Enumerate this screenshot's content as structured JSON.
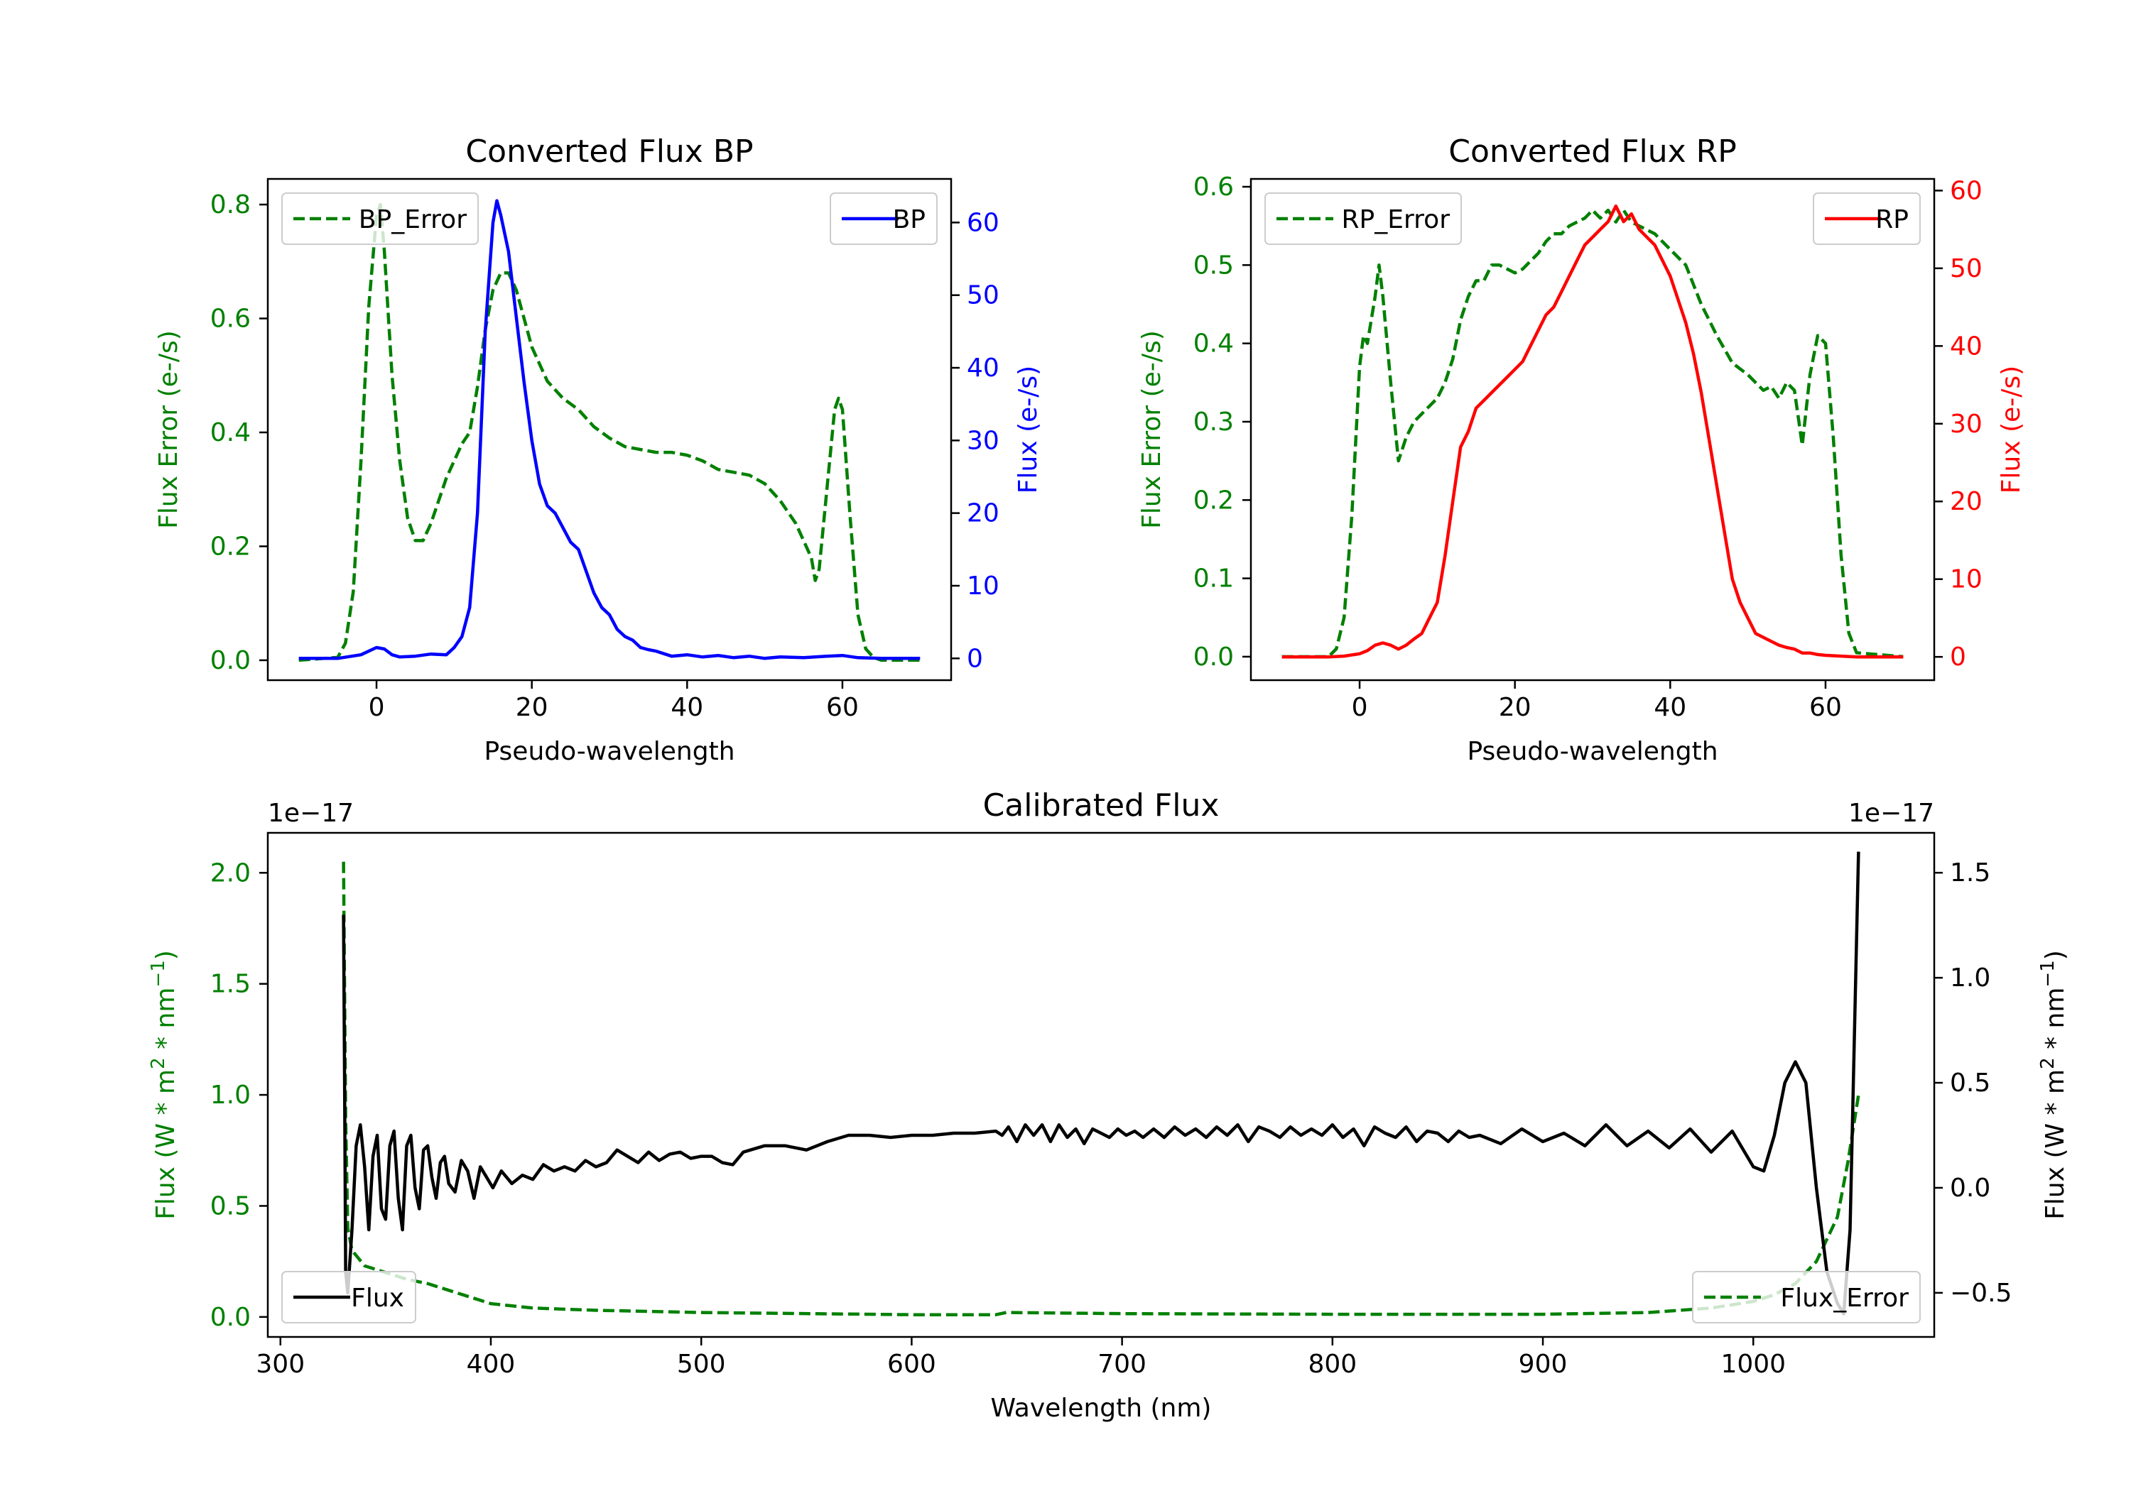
{
  "chart_data": [
    {
      "type": "line",
      "id": "bp",
      "title": "Converted Flux BP",
      "xlabel": "Pseudo-wavelength",
      "ylabel_left": "Flux Error (e-/s)",
      "ylabel_right": "Flux (e-/s)",
      "xlim": [
        -14,
        74
      ],
      "ylim_left": [
        -0.035,
        0.845
      ],
      "ylim_right": [
        -3,
        66
      ],
      "xticks": [
        0,
        20,
        40,
        60
      ],
      "yticks_left": [
        "0.0",
        "0.2",
        "0.4",
        "0.6",
        "0.8"
      ],
      "yticks_right": [
        "0",
        "10",
        "20",
        "30",
        "40",
        "50",
        "60"
      ],
      "left_color": "#008000",
      "right_color": "#0000ff",
      "series": [
        {
          "name": "BP_Error",
          "axis": "left",
          "style": "dashed",
          "color": "#008000",
          "x": [
            -10,
            -5,
            -4,
            -3,
            -2,
            -1,
            0,
            0.5,
            1,
            2,
            3,
            4,
            5,
            6,
            7,
            8,
            9,
            10,
            11,
            12,
            13,
            14,
            15,
            16,
            17,
            18,
            19,
            20,
            22,
            24,
            26,
            28,
            30,
            32,
            34,
            36,
            38,
            40,
            42,
            44,
            46,
            48,
            50,
            52,
            54,
            56,
            56.5,
            57,
            58,
            59,
            59.5,
            60,
            61,
            62,
            63,
            64,
            65,
            70
          ],
          "y": [
            0,
            0.005,
            0.03,
            0.12,
            0.35,
            0.62,
            0.78,
            0.8,
            0.72,
            0.5,
            0.35,
            0.25,
            0.21,
            0.21,
            0.24,
            0.28,
            0.32,
            0.35,
            0.38,
            0.4,
            0.48,
            0.58,
            0.65,
            0.68,
            0.68,
            0.65,
            0.6,
            0.55,
            0.49,
            0.46,
            0.44,
            0.41,
            0.39,
            0.375,
            0.37,
            0.365,
            0.365,
            0.36,
            0.35,
            0.335,
            0.33,
            0.325,
            0.31,
            0.28,
            0.24,
            0.18,
            0.14,
            0.16,
            0.3,
            0.44,
            0.46,
            0.44,
            0.25,
            0.08,
            0.02,
            0.005,
            0,
            0
          ]
        },
        {
          "name": "BP",
          "axis": "right",
          "style": "solid",
          "color": "#0000ff",
          "x": [
            -10,
            -5,
            -2,
            0,
            1,
            2,
            3,
            5,
            7,
            9,
            10,
            11,
            12,
            13,
            14,
            15,
            15.5,
            16,
            17,
            18,
            19,
            20,
            21,
            22,
            23,
            24,
            25,
            26,
            27,
            28,
            29,
            30,
            31,
            32,
            33,
            34,
            35,
            36,
            38,
            40,
            42,
            44,
            46,
            48,
            50,
            52,
            55,
            58,
            60,
            62,
            65,
            70
          ],
          "y": [
            0,
            0,
            0.5,
            1.5,
            1.3,
            0.5,
            0.2,
            0.3,
            0.6,
            0.5,
            1.5,
            3,
            7,
            20,
            45,
            60,
            63,
            61,
            56,
            47,
            38,
            30,
            24,
            21,
            20,
            18,
            16,
            15,
            12,
            9,
            7,
            6,
            4,
            3,
            2.5,
            1.5,
            1.2,
            1.0,
            0.3,
            0.5,
            0.2,
            0.4,
            0.1,
            0.3,
            0.0,
            0.2,
            0.1,
            0.3,
            0.4,
            0.1,
            0.0,
            0.0
          ]
        }
      ]
    },
    {
      "type": "line",
      "id": "rp",
      "title": "Converted Flux RP",
      "xlabel": "Pseudo-wavelength",
      "ylabel_left": "Flux Error (e-/s)",
      "ylabel_right": "Flux (e-/s)",
      "xlim": [
        -14,
        74
      ],
      "ylim_left": [
        -0.03,
        0.61
      ],
      "ylim_right": [
        -3,
        61.5
      ],
      "xticks": [
        0,
        20,
        40,
        60
      ],
      "yticks_left": [
        "0.0",
        "0.1",
        "0.2",
        "0.3",
        "0.4",
        "0.5",
        "0.6"
      ],
      "yticks_right": [
        "0",
        "10",
        "20",
        "30",
        "40",
        "50",
        "60"
      ],
      "left_color": "#008000",
      "right_color": "#ff0000",
      "series": [
        {
          "name": "RP_Error",
          "axis": "left",
          "style": "dashed",
          "color": "#008000",
          "x": [
            -10,
            -4,
            -3,
            -2,
            -1,
            0,
            0.5,
            1,
            2,
            2.5,
            3,
            4,
            5,
            6,
            7,
            8,
            9,
            10,
            11,
            12,
            13,
            14,
            15,
            16,
            17,
            18,
            19,
            20,
            21,
            22,
            23,
            24,
            25,
            26,
            27,
            28,
            29,
            30,
            31,
            32,
            33,
            34,
            35,
            36,
            37,
            38,
            40,
            42,
            44,
            46,
            48,
            50,
            52,
            53,
            54,
            55,
            56,
            57,
            58,
            59,
            60,
            61,
            62,
            63,
            64,
            70
          ],
          "y": [
            0,
            0,
            0.01,
            0.05,
            0.18,
            0.37,
            0.41,
            0.4,
            0.46,
            0.5,
            0.46,
            0.35,
            0.25,
            0.28,
            0.3,
            0.31,
            0.32,
            0.33,
            0.35,
            0.38,
            0.43,
            0.46,
            0.48,
            0.48,
            0.5,
            0.5,
            0.495,
            0.49,
            0.495,
            0.505,
            0.515,
            0.53,
            0.54,
            0.54,
            0.55,
            0.555,
            0.56,
            0.57,
            0.56,
            0.57,
            0.555,
            0.57,
            0.555,
            0.55,
            0.545,
            0.54,
            0.52,
            0.5,
            0.45,
            0.41,
            0.375,
            0.36,
            0.34,
            0.345,
            0.33,
            0.35,
            0.34,
            0.27,
            0.36,
            0.41,
            0.4,
            0.28,
            0.13,
            0.03,
            0.005,
            0
          ]
        },
        {
          "name": "RP",
          "axis": "right",
          "style": "solid",
          "color": "#ff0000",
          "x": [
            -10,
            -4,
            -2,
            0,
            1,
            2,
            3,
            4,
            5,
            6,
            7,
            8,
            9,
            10,
            11,
            12,
            13,
            14,
            15,
            16,
            17,
            18,
            19,
            20,
            21,
            22,
            23,
            24,
            25,
            26,
            27,
            28,
            29,
            30,
            31,
            32,
            33,
            34,
            35,
            36,
            37,
            38,
            39,
            40,
            41,
            42,
            43,
            44,
            45,
            46,
            47,
            48,
            49,
            50,
            51,
            52,
            53,
            54,
            55,
            56,
            57,
            58,
            59,
            60,
            62,
            64,
            70
          ],
          "y": [
            0,
            0,
            0.1,
            0.4,
            0.8,
            1.5,
            1.8,
            1.5,
            1.0,
            1.5,
            2.3,
            3,
            5,
            7,
            13,
            20,
            27,
            29,
            32,
            33,
            34,
            35,
            36,
            37,
            38,
            40,
            42,
            44,
            45,
            47,
            49,
            51,
            53,
            54,
            55,
            56,
            58,
            56,
            57,
            55,
            54,
            53,
            51,
            49,
            46,
            43,
            39,
            34,
            28,
            22,
            16,
            10,
            7,
            5,
            3,
            2.5,
            2,
            1.5,
            1.2,
            1.0,
            0.5,
            0.5,
            0.3,
            0.2,
            0.1,
            0,
            0
          ]
        }
      ]
    },
    {
      "type": "line",
      "id": "cal",
      "title": "Calibrated Flux",
      "xlabel": "Wavelength (nm)",
      "ylabel_left": "Flux (W * m",
      "ylabel_right": "Flux (W * m",
      "ylabel_tail_1": " * nm",
      "ylabel_tail_2": ")",
      "ylabel_sup_2": "2",
      "ylabel_sup_neg1": "−1",
      "offset_left": "1e−17",
      "offset_right": "1e−17",
      "xlim": [
        294,
        1086
      ],
      "ylim_left": [
        -0.09,
        2.18
      ],
      "ylim_right": [
        -0.71,
        1.69
      ],
      "xticks": [
        300,
        400,
        500,
        600,
        700,
        800,
        900,
        1000
      ],
      "yticks_left": [
        "0.0",
        "0.5",
        "1.0",
        "1.5",
        "2.0"
      ],
      "yticks_right": [
        "−0.5",
        "0.0",
        "0.5",
        "1.0",
        "1.5"
      ],
      "left_color": "#008000",
      "right_color": "#000000",
      "series": [
        {
          "name": "Flux_Error",
          "axis": "left",
          "style": "dashed",
          "color": "#008000",
          "x": [
            330,
            331,
            332,
            334,
            340,
            350,
            360,
            370,
            380,
            390,
            400,
            420,
            450,
            500,
            600,
            640,
            645,
            700,
            800,
            900,
            950,
            980,
            1000,
            1010,
            1020,
            1030,
            1040,
            1045,
            1050
          ],
          "y": [
            2.05,
            0.9,
            0.4,
            0.3,
            0.23,
            0.2,
            0.17,
            0.15,
            0.12,
            0.09,
            0.06,
            0.04,
            0.03,
            0.02,
            0.01,
            0.01,
            0.02,
            0.015,
            0.012,
            0.012,
            0.02,
            0.04,
            0.07,
            0.1,
            0.15,
            0.25,
            0.45,
            0.7,
            1.0
          ]
        },
        {
          "name": "Flux",
          "axis": "right",
          "style": "solid",
          "color": "#000000",
          "x": [
            330,
            330.5,
            331,
            332,
            334,
            336,
            338,
            340,
            342,
            344,
            346,
            348,
            350,
            352,
            354,
            356,
            358,
            360,
            362,
            364,
            366,
            368,
            370,
            372,
            374,
            376,
            378,
            380,
            383,
            386,
            389,
            392,
            395,
            398,
            401,
            405,
            410,
            415,
            420,
            425,
            430,
            435,
            440,
            445,
            450,
            455,
            460,
            465,
            470,
            475,
            480,
            485,
            490,
            495,
            500,
            505,
            510,
            515,
            520,
            530,
            540,
            550,
            560,
            570,
            580,
            590,
            600,
            610,
            620,
            630,
            640,
            643,
            646,
            650,
            654,
            658,
            662,
            666,
            670,
            674,
            678,
            682,
            686,
            690,
            694,
            698,
            702,
            706,
            710,
            715,
            720,
            725,
            730,
            735,
            740,
            745,
            750,
            755,
            760,
            765,
            770,
            775,
            780,
            785,
            790,
            795,
            800,
            805,
            810,
            815,
            820,
            825,
            830,
            835,
            840,
            845,
            850,
            855,
            860,
            865,
            870,
            880,
            890,
            900,
            910,
            920,
            930,
            940,
            950,
            960,
            970,
            980,
            990,
            1000,
            1005,
            1010,
            1015,
            1020,
            1025,
            1030,
            1035,
            1040,
            1043,
            1046,
            1050
          ],
          "y": [
            1.3,
            0.5,
            -0.4,
            -0.5,
            -0.2,
            0.2,
            0.3,
            0.1,
            -0.2,
            0.15,
            0.25,
            -0.1,
            -0.15,
            0.2,
            0.27,
            -0.05,
            -0.2,
            0.2,
            0.25,
            0.0,
            -0.1,
            0.18,
            0.2,
            0.05,
            -0.05,
            0.12,
            0.15,
            0.02,
            -0.02,
            0.13,
            0.08,
            -0.05,
            0.1,
            0.05,
            0.0,
            0.08,
            0.02,
            0.06,
            0.04,
            0.11,
            0.08,
            0.1,
            0.08,
            0.13,
            0.1,
            0.12,
            0.18,
            0.15,
            0.12,
            0.17,
            0.13,
            0.16,
            0.17,
            0.14,
            0.15,
            0.15,
            0.12,
            0.11,
            0.17,
            0.2,
            0.2,
            0.18,
            0.22,
            0.25,
            0.25,
            0.24,
            0.25,
            0.25,
            0.26,
            0.26,
            0.27,
            0.25,
            0.29,
            0.22,
            0.3,
            0.25,
            0.3,
            0.22,
            0.3,
            0.24,
            0.28,
            0.21,
            0.28,
            0.26,
            0.24,
            0.28,
            0.25,
            0.27,
            0.24,
            0.28,
            0.24,
            0.29,
            0.25,
            0.28,
            0.24,
            0.29,
            0.25,
            0.3,
            0.22,
            0.29,
            0.27,
            0.24,
            0.29,
            0.25,
            0.28,
            0.25,
            0.3,
            0.24,
            0.28,
            0.2,
            0.29,
            0.26,
            0.24,
            0.29,
            0.22,
            0.27,
            0.26,
            0.22,
            0.27,
            0.24,
            0.25,
            0.21,
            0.28,
            0.22,
            0.26,
            0.2,
            0.3,
            0.2,
            0.27,
            0.19,
            0.28,
            0.17,
            0.27,
            0.1,
            0.08,
            0.25,
            0.5,
            0.6,
            0.5,
            0.0,
            -0.4,
            -0.55,
            -0.6,
            -0.2,
            1.6
          ]
        }
      ]
    }
  ]
}
